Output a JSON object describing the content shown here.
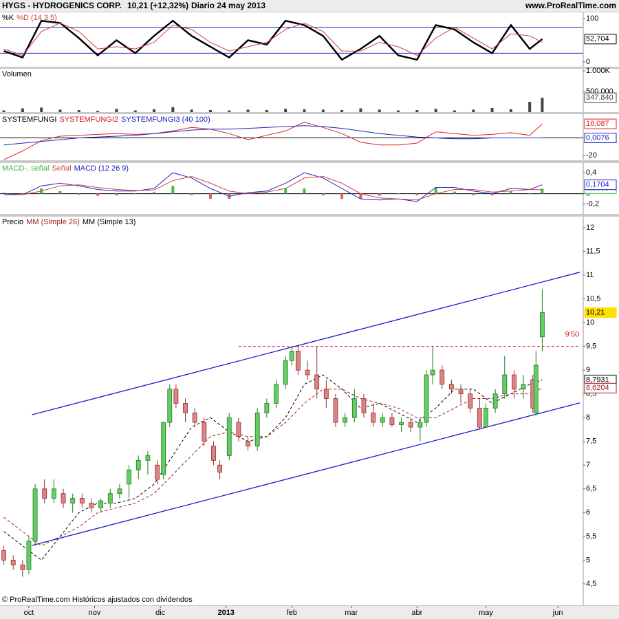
{
  "header": {
    "symbol": "HYGS - HYDROGENICS CORP.",
    "quote": "10,21 (+12,32%)",
    "period": "Diario  24 may 2013",
    "site": "www.ProRealTime.com"
  },
  "footer": "© ProRealTime.com Históricos ajustados con dividendos",
  "chart_data": [
    {
      "type": "line",
      "title": [
        {
          "text": "%K",
          "color": "#000000"
        },
        {
          "text": "%D (14 3 5)",
          "color": "#d04040"
        }
      ],
      "x": [
        -8,
        -2,
        4,
        10,
        16,
        22,
        28,
        34,
        40,
        46,
        52,
        58,
        64,
        70,
        76,
        82,
        88,
        94,
        100,
        106,
        112,
        118,
        124,
        130,
        136,
        142,
        148,
        154,
        160,
        164
      ],
      "series": [
        {
          "color": "#000000",
          "width": 2.5,
          "values": [
            25,
            10,
            95,
            90,
            55,
            15,
            50,
            20,
            60,
            95,
            60,
            35,
            10,
            50,
            40,
            95,
            85,
            60,
            5,
            30,
            60,
            15,
            5,
            85,
            75,
            45,
            20,
            85,
            30,
            52.704
          ],
          "last_label": "52,704"
        },
        {
          "color": "#d04040",
          "width": 1,
          "values": [
            30,
            15,
            70,
            90,
            70,
            30,
            35,
            30,
            45,
            85,
            75,
            45,
            25,
            35,
            45,
            75,
            90,
            70,
            25,
            25,
            45,
            35,
            15,
            55,
            80,
            55,
            30,
            65,
            60,
            45
          ]
        }
      ],
      "levels": [
        80,
        20
      ],
      "level_color": "#2020c0",
      "ylim": [
        -11.3,
        114.5
      ],
      "yticks": [
        0,
        100
      ]
    },
    {
      "type": "bar",
      "title": [
        {
          "text": "Volumen",
          "color": "#000000"
        }
      ],
      "x": [
        -8,
        -2,
        4,
        10,
        16,
        22,
        28,
        34,
        40,
        46,
        52,
        58,
        64,
        70,
        76,
        82,
        88,
        94,
        100,
        106,
        112,
        118,
        124,
        130,
        136,
        142,
        148,
        154,
        160,
        164
      ],
      "series": [
        {
          "color": "#444444",
          "kind": "bar",
          "values": [
            40000,
            90000,
            110000,
            60000,
            50000,
            30000,
            80000,
            40000,
            70000,
            120000,
            60000,
            50000,
            40000,
            60000,
            50000,
            80000,
            70000,
            60000,
            50000,
            90000,
            60000,
            40000,
            50000,
            80000,
            40000,
            60000,
            100000,
            70000,
            250000,
            347840
          ],
          "last_label": "347.840"
        }
      ],
      "ylim": [
        0,
        1050000
      ],
      "yticks": [
        {
          "value": 500000,
          "label": "500.000"
        },
        {
          "value": 1000000,
          "label": "1.000K"
        }
      ]
    },
    {
      "type": "line",
      "title": [
        {
          "text": "SYSTEMFUNGI",
          "color": "#000000"
        },
        {
          "text": "SYSTEMFUNGI2",
          "color": "#d02020"
        },
        {
          "text": "SYSTEMFUNGI3 (40 100)",
          "color": "#2020c0"
        }
      ],
      "x": [
        -8,
        -2,
        4,
        10,
        16,
        22,
        28,
        34,
        40,
        46,
        52,
        58,
        64,
        70,
        76,
        82,
        88,
        94,
        100,
        106,
        112,
        118,
        124,
        130,
        136,
        142,
        148,
        154,
        160,
        164
      ],
      "series": [
        {
          "color": "#e02020",
          "width": 1,
          "values": [
            -25,
            -15,
            -3,
            2,
            3,
            4,
            5,
            4,
            5,
            8,
            12,
            10,
            5,
            -2,
            3,
            8,
            18,
            12,
            5,
            -5,
            -8,
            -8,
            -6,
            7,
            5,
            3,
            4,
            6,
            3,
            16.087
          ],
          "last_label": "16,087"
        },
        {
          "color": "#2020c0",
          "width": 1,
          "values": [
            -8,
            -6,
            -4,
            -2,
            0,
            1,
            2,
            3,
            5,
            7,
            9,
            10,
            10,
            11,
            12,
            13,
            14,
            13,
            11,
            8,
            5,
            3,
            1,
            0,
            -1,
            -1,
            0,
            0,
            0,
            0.0076
          ],
          "last_label": "0,0076"
        }
      ],
      "levels": [
        0
      ],
      "level_color": "#000000",
      "ylim": [
        -25.6,
        27.2
      ],
      "yticks": [
        -20
      ]
    },
    {
      "type": "line",
      "title": [
        {
          "text": "MACD-, señal",
          "color": "#40b040"
        },
        {
          "text": "Señal",
          "color": "#d04040"
        },
        {
          "text": "MACD (12 26 9)",
          "color": "#2020c0"
        }
      ],
      "x": [
        -8,
        -2,
        4,
        10,
        16,
        22,
        28,
        34,
        40,
        46,
        52,
        58,
        64,
        70,
        76,
        82,
        88,
        94,
        100,
        106,
        112,
        118,
        124,
        130,
        136,
        142,
        148,
        154,
        160,
        164
      ],
      "series": [
        {
          "color": "#40c040",
          "neg_color": "#e06060",
          "kind": "bar",
          "values": [
            0.02,
            0,
            0.1,
            0.05,
            -0.02,
            -0.04,
            -0.03,
            -0.01,
            0.03,
            0.15,
            -0.03,
            -0.1,
            -0.1,
            0.02,
            0.02,
            0.1,
            0.1,
            -0.03,
            -0.1,
            -0.1,
            -0.04,
            0,
            -0.03,
            0.12,
            0.04,
            -0.03,
            -0.03,
            0.05,
            0,
            0.0959
          ],
          "last_label": "0,0959"
        },
        {
          "color": "#2020c0",
          "width": 1,
          "values": [
            0,
            -0.02,
            0.15,
            0.2,
            0.15,
            0.08,
            0.05,
            0.05,
            0.1,
            0.4,
            0.3,
            0.1,
            -0.05,
            0.02,
            0.05,
            0.2,
            0.4,
            0.3,
            0.1,
            -0.1,
            -0.12,
            -0.1,
            -0.15,
            0.12,
            0.12,
            0.05,
            0,
            0.1,
            0.08,
            0.1704
          ],
          "last_label": "0,1704"
        },
        {
          "color": "#d04040",
          "width": 1,
          "values": [
            -0.02,
            -0.02,
            0.05,
            0.15,
            0.17,
            0.12,
            0.08,
            0.06,
            0.07,
            0.25,
            0.33,
            0.2,
            0.05,
            0,
            0.03,
            0.1,
            0.3,
            0.33,
            0.2,
            0,
            -0.08,
            -0.1,
            -0.12,
            0,
            0.08,
            0.08,
            0.03,
            0.05,
            0.08,
            0.075
          ]
        }
      ],
      "levels": [
        0
      ],
      "level_color": "#000000",
      "ylim": [
        -0.387,
        0.587
      ],
      "yticks": [
        {
          "value": 0.4,
          "label": "0,4"
        },
        0,
        {
          "value": -0.2,
          "label": "-0,2"
        }
      ]
    },
    {
      "type": "candlestick",
      "title": [
        {
          "text": "Precio",
          "color": "#000000"
        },
        {
          "text": "MM (Simple 26)",
          "color": "#a02020"
        },
        {
          "text": "MM (Simple 13)",
          "color": "#000000"
        }
      ],
      "x": [
        -8,
        -5,
        -2,
        0,
        2,
        5,
        8,
        11,
        14,
        17,
        20,
        23,
        26,
        29,
        32,
        35,
        38,
        41,
        43,
        45,
        47,
        50,
        53,
        56,
        59,
        61,
        64,
        67,
        70,
        73,
        76,
        79,
        82,
        84,
        86,
        89,
        92,
        95,
        98,
        101,
        104,
        107,
        110,
        113,
        116,
        119,
        122,
        125,
        127,
        129,
        132,
        135,
        138,
        141,
        144,
        146,
        149,
        152,
        155,
        158,
        161,
        162,
        164
      ],
      "open": [
        5.2,
        5.0,
        4.9,
        4.8,
        5.4,
        6.5,
        6.3,
        6.4,
        6.2,
        6.3,
        6.2,
        6.1,
        6.2,
        6.4,
        6.6,
        6.9,
        7.1,
        7.0,
        6.8,
        7.9,
        8.6,
        8.3,
        8.1,
        7.9,
        7.4,
        7.0,
        7.2,
        7.9,
        7.5,
        7.4,
        8.1,
        8.3,
        8.7,
        9.2,
        9.4,
        9.0,
        8.9,
        8.6,
        8.4,
        7.9,
        8.0,
        8.4,
        8.1,
        7.9,
        8.0,
        7.85,
        7.9,
        7.8,
        7.9,
        8.9,
        9.0,
        8.7,
        8.6,
        8.5,
        8.2,
        7.8,
        8.2,
        8.5,
        8.9,
        8.6,
        8.8,
        8.1,
        9.7
      ],
      "high": [
        5.3,
        5.1,
        5.0,
        5.5,
        6.6,
        6.7,
        6.7,
        6.5,
        6.4,
        6.4,
        6.3,
        6.3,
        6.5,
        6.6,
        7.0,
        7.2,
        7.3,
        7.1,
        7.9,
        8.7,
        8.7,
        8.4,
        8.2,
        8.0,
        7.5,
        7.1,
        8.1,
        8.0,
        7.6,
        8.2,
        8.4,
        8.8,
        9.3,
        9.5,
        9.5,
        9.2,
        9.5,
        8.8,
        8.5,
        8.1,
        8.6,
        8.5,
        8.3,
        8.1,
        8.1,
        8.0,
        8.0,
        8.0,
        9.0,
        9.5,
        9.1,
        8.8,
        8.7,
        8.6,
        8.4,
        8.3,
        8.6,
        9.3,
        9.0,
        8.9,
        8.9,
        9.4,
        10.7
      ],
      "low": [
        4.9,
        4.8,
        4.65,
        4.7,
        5.3,
        6.2,
        6.2,
        6.1,
        6.0,
        6.1,
        6.0,
        6.0,
        6.1,
        6.3,
        6.3,
        6.7,
        6.8,
        6.6,
        6.7,
        7.8,
        8.2,
        7.9,
        7.8,
        7.4,
        7.0,
        6.7,
        7.1,
        7.5,
        7.3,
        7.3,
        8.0,
        8.2,
        8.6,
        9.1,
        8.9,
        8.8,
        8.4,
        8.2,
        7.8,
        7.8,
        7.9,
        8.0,
        7.8,
        7.8,
        7.8,
        7.7,
        7.7,
        7.5,
        7.8,
        8.7,
        8.6,
        8.5,
        8.3,
        8.1,
        7.75,
        7.8,
        8.1,
        8.4,
        8.4,
        8.4,
        8.1,
        8.05,
        9.4
      ],
      "close": [
        5.0,
        4.9,
        4.8,
        5.4,
        6.5,
        6.3,
        6.5,
        6.2,
        6.3,
        6.2,
        6.1,
        6.25,
        6.4,
        6.5,
        6.9,
        7.1,
        7.2,
        6.7,
        7.9,
        8.6,
        8.3,
        8.1,
        7.9,
        7.5,
        7.1,
        6.85,
        8.0,
        7.6,
        7.4,
        8.1,
        8.3,
        8.7,
        9.2,
        9.4,
        9.0,
        8.9,
        8.6,
        8.4,
        7.9,
        8.0,
        8.4,
        8.1,
        7.9,
        8.0,
        7.85,
        7.9,
        7.8,
        7.9,
        8.9,
        9.0,
        8.7,
        8.6,
        8.5,
        8.2,
        7.8,
        8.2,
        8.5,
        8.9,
        8.6,
        8.7,
        8.2,
        9.1,
        10.21
      ],
      "close_label": "10,21",
      "up_color": "#66cc66",
      "up_edge": "#1f7a1f",
      "down_color": "#d98585",
      "down_edge": "#9a2a2a",
      "series": [
        {
          "color": "#000000",
          "dash": true,
          "x": [
            -8,
            -2,
            4,
            10,
            16,
            22,
            28,
            34,
            40,
            46,
            52,
            58,
            64,
            70,
            76,
            82,
            88,
            94,
            100,
            106,
            112,
            118,
            124,
            130,
            136,
            142,
            148,
            154,
            160,
            164
          ],
          "values": [
            5.6,
            5.3,
            5.0,
            5.5,
            6.0,
            6.2,
            6.2,
            6.3,
            6.6,
            7.2,
            7.8,
            8.0,
            7.7,
            7.5,
            7.6,
            8.0,
            8.7,
            8.9,
            8.6,
            8.2,
            8.3,
            8.1,
            7.9,
            8.2,
            8.6,
            8.6,
            8.3,
            8.5,
            8.7,
            8.7931
          ],
          "last_label": "8,7931"
        },
        {
          "color": "#a02020",
          "dash": true,
          "x": [
            -8,
            -2,
            4,
            10,
            16,
            22,
            28,
            34,
            40,
            46,
            52,
            58,
            64,
            70,
            76,
            82,
            88,
            94,
            100,
            106,
            112,
            118,
            124,
            130,
            136,
            142,
            148,
            154,
            160,
            164
          ],
          "values": [
            5.9,
            5.6,
            5.3,
            5.5,
            5.7,
            6.0,
            6.1,
            6.2,
            6.4,
            6.8,
            7.2,
            7.6,
            7.7,
            7.6,
            7.6,
            7.9,
            8.3,
            8.6,
            8.6,
            8.4,
            8.3,
            8.2,
            8.0,
            8.0,
            8.2,
            8.4,
            8.4,
            8.5,
            8.5,
            8.6204
          ],
          "last_label": "8,6204"
        }
      ],
      "trendlines": [
        {
          "x": [
            1,
            176
          ],
          "y": [
            8.06,
            11.06
          ],
          "color": "#1a1ad0"
        },
        {
          "x": [
            1,
            176
          ],
          "y": [
            5.31,
            8.31
          ],
          "color": "#1a1ad0"
        }
      ],
      "hline": {
        "value": 9.5,
        "x": [
          67,
          176
        ],
        "label": "9'50",
        "color": "#d02020"
      },
      "xlim": [
        -9,
        176
      ],
      "xticks": [
        {
          "value": 0,
          "label": "oct"
        },
        {
          "value": 21,
          "label": "nov"
        },
        {
          "value": 42,
          "label": "dic"
        },
        {
          "value": 63,
          "label": "2013"
        },
        {
          "value": 84,
          "label": "feb"
        },
        {
          "value": 103,
          "label": "mar"
        },
        {
          "value": 124,
          "label": "abr"
        },
        {
          "value": 146,
          "label": "may"
        },
        {
          "value": 169,
          "label": "jun"
        }
      ],
      "ylim": [
        4.05,
        12.23
      ],
      "yticks": [
        12,
        {
          "value": 11.5,
          "label": "11,5"
        },
        11,
        {
          "value": 10.5,
          "label": "10,5"
        },
        10,
        {
          "value": 9.5,
          "label": "9,5"
        },
        9,
        {
          "value": 8.5,
          "label": "8,5"
        },
        8,
        {
          "value": 7.5,
          "label": "7,5"
        },
        7,
        {
          "value": 6.5,
          "label": "6,5"
        },
        6,
        {
          "value": 5.5,
          "label": "5,5"
        },
        5,
        {
          "value": 4.5,
          "label": "4,5"
        }
      ]
    }
  ]
}
